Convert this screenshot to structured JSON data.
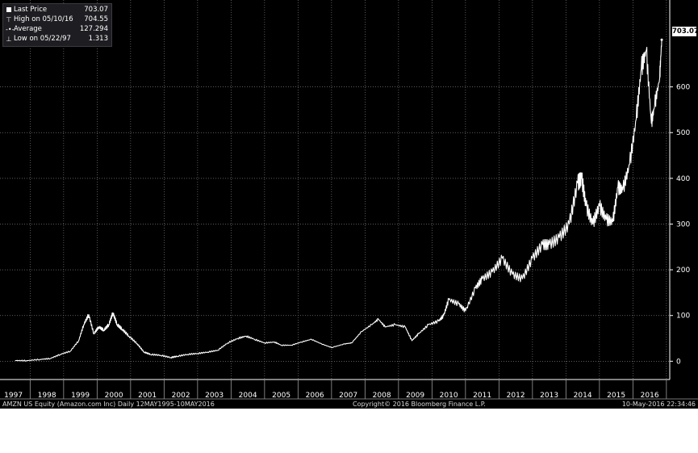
{
  "chart_data": {
    "type": "line",
    "title": "",
    "xlabel": "",
    "ylabel": "",
    "ylim": [
      -40,
      790
    ],
    "y_ticks": [
      0,
      100,
      200,
      300,
      400,
      500,
      600
    ],
    "x_ticks": [
      "1997",
      "1998",
      "1999",
      "2000",
      "2001",
      "2002",
      "2003",
      "2004",
      "2005",
      "2006",
      "2007",
      "2008",
      "2009",
      "2010",
      "2011",
      "2012",
      "2013",
      "2014",
      "2015",
      "2016"
    ],
    "grid": true,
    "legend_position": "top-left",
    "series": [
      {
        "name": "Last Price",
        "color": "#ffffff",
        "points": [
          [
            1997.05,
            1.5
          ],
          [
            1997.4,
            1.313
          ],
          [
            1997.8,
            4
          ],
          [
            1998.1,
            6
          ],
          [
            1998.4,
            15
          ],
          [
            1998.7,
            22
          ],
          [
            1998.95,
            45
          ],
          [
            1999.1,
            80
          ],
          [
            1999.25,
            102
          ],
          [
            1999.4,
            60
          ],
          [
            1999.55,
            75
          ],
          [
            1999.7,
            68
          ],
          [
            1999.85,
            80
          ],
          [
            1999.97,
            106
          ],
          [
            2000.1,
            80
          ],
          [
            2000.25,
            70
          ],
          [
            2000.45,
            55
          ],
          [
            2000.7,
            38
          ],
          [
            2000.9,
            20
          ],
          [
            2001.1,
            15
          ],
          [
            2001.4,
            13
          ],
          [
            2001.7,
            8
          ],
          [
            2001.9,
            11
          ],
          [
            2002.2,
            15
          ],
          [
            2002.5,
            17
          ],
          [
            2002.8,
            20
          ],
          [
            2003.1,
            24
          ],
          [
            2003.4,
            40
          ],
          [
            2003.7,
            50
          ],
          [
            2003.95,
            55
          ],
          [
            2004.2,
            48
          ],
          [
            2004.5,
            40
          ],
          [
            2004.8,
            42
          ],
          [
            2005.0,
            35
          ],
          [
            2005.3,
            35
          ],
          [
            2005.6,
            42
          ],
          [
            2005.9,
            48
          ],
          [
            2006.2,
            38
          ],
          [
            2006.5,
            30
          ],
          [
            2006.9,
            38
          ],
          [
            2007.1,
            40
          ],
          [
            2007.4,
            65
          ],
          [
            2007.7,
            80
          ],
          [
            2007.9,
            92
          ],
          [
            2008.1,
            75
          ],
          [
            2008.4,
            80
          ],
          [
            2008.7,
            75
          ],
          [
            2008.9,
            45
          ],
          [
            2009.1,
            60
          ],
          [
            2009.4,
            80
          ],
          [
            2009.7,
            88
          ],
          [
            2009.85,
            100
          ],
          [
            2010.0,
            135
          ],
          [
            2010.3,
            125
          ],
          [
            2010.5,
            110
          ],
          [
            2010.8,
            160
          ],
          [
            2011.0,
            180
          ],
          [
            2011.3,
            195
          ],
          [
            2011.6,
            225
          ],
          [
            2011.9,
            190
          ],
          [
            2012.2,
            180
          ],
          [
            2012.5,
            225
          ],
          [
            2012.8,
            255
          ],
          [
            2013.0,
            255
          ],
          [
            2013.3,
            270
          ],
          [
            2013.6,
            300
          ],
          [
            2013.85,
            390
          ],
          [
            2013.97,
            400
          ],
          [
            2014.1,
            340
          ],
          [
            2014.3,
            300
          ],
          [
            2014.5,
            340
          ],
          [
            2014.7,
            310
          ],
          [
            2014.9,
            305
          ],
          [
            2015.05,
            380
          ],
          [
            2015.2,
            375
          ],
          [
            2015.4,
            430
          ],
          [
            2015.6,
            530
          ],
          [
            2015.75,
            640
          ],
          [
            2015.9,
            680
          ],
          [
            2016.05,
            520
          ],
          [
            2016.15,
            560
          ],
          [
            2016.3,
            620
          ],
          [
            2016.36,
            703.07
          ]
        ]
      }
    ]
  },
  "legend": {
    "rows": [
      {
        "label": "Last Price",
        "value": "703.07"
      },
      {
        "label": "High on 05/10/16",
        "value": "704.55"
      },
      {
        "label": "Average",
        "value": "127.294"
      },
      {
        "label": "Low on 05/22/97",
        "value": "1.313"
      }
    ]
  },
  "last_value_tag": "703.07",
  "footer": {
    "left": "AMZN US Equity (Amazon.com Inc)  Daily 12MAY1995-10MAY2016",
    "center": "Copyright© 2016 Bloomberg Finance L.P.",
    "right": "10-May-2016 22:34:46"
  },
  "colors": {
    "background": "#000000",
    "line": "#ffffff",
    "grid": "#7a7a7a"
  }
}
